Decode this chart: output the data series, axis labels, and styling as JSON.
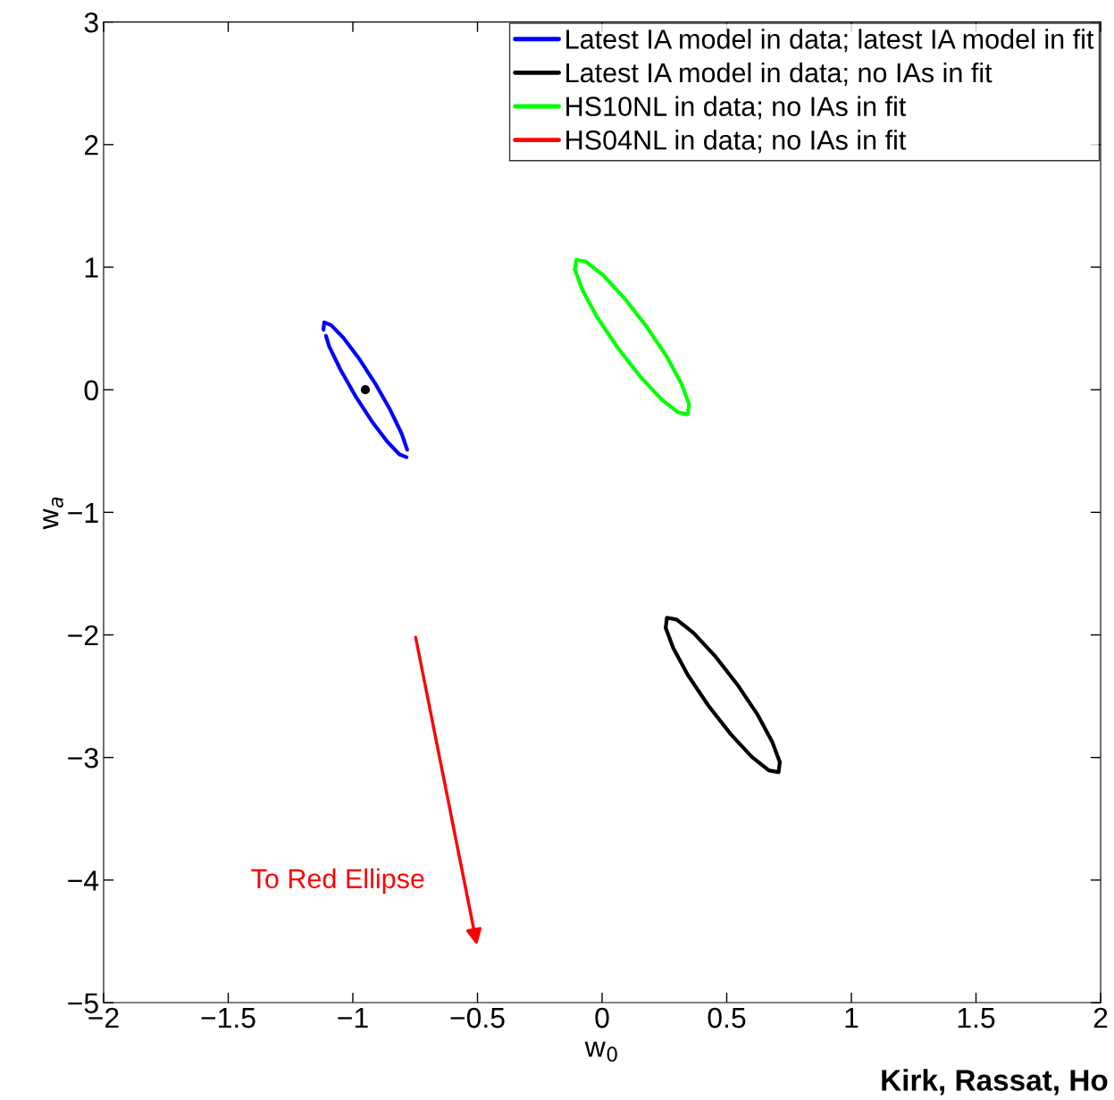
{
  "chart_data": {
    "type": "line",
    "xlabel": "w$_{0}$",
    "ylabel": "w$_{a}$",
    "xlim": [
      -2,
      2
    ],
    "ylim": [
      -5,
      3
    ],
    "xticks": [
      {
        "value": -2,
        "label": "−2"
      },
      {
        "value": -1.5,
        "label": "−1.5"
      },
      {
        "value": -1,
        "label": "−1"
      },
      {
        "value": -0.5,
        "label": "−0.5"
      },
      0,
      0.5,
      1,
      1.5,
      2
    ],
    "yticks": [
      {
        "value": -5,
        "label": "−5"
      },
      {
        "value": -4,
        "label": "−4"
      },
      {
        "value": -3,
        "label": "−3"
      },
      {
        "value": -2,
        "label": "−2"
      },
      {
        "value": -1,
        "label": "−1"
      },
      0,
      1,
      2,
      3
    ],
    "grid": false,
    "legend": "top right",
    "line_style": "solid",
    "series": [
      {
        "name": "Latest IA model in data; latest IA model in fit",
        "color": "#0000ff",
        "x": [
          -1.118,
          -1.115,
          -1.087,
          -1.038,
          -0.976,
          -0.91,
          -0.85,
          -0.805,
          -0.782
        ],
        "values": [
          0.489,
          0.55,
          0.527,
          0.424,
          0.257,
          0.05,
          -0.165,
          -0.354,
          -0.489
        ]
      },
      {
        "color": "#0000ff",
        "x": [
          -1.108,
          -1.095,
          -1.05,
          -0.99,
          -0.924,
          -0.862,
          -0.813,
          -0.785
        ],
        "values": [
          0.44,
          0.354,
          0.165,
          -0.05,
          -0.257,
          -0.424,
          -0.527,
          -0.55
        ]
      },
      {
        "name": "Latest IA model in data; no IAs in fit",
        "color": "#000000",
        "x": [
          0.255,
          0.26,
          0.299,
          0.367,
          0.452,
          0.542,
          0.624,
          0.683,
          0.713
        ],
        "values": [
          -1.941,
          -1.86,
          -1.875,
          -1.984,
          -2.17,
          -2.404,
          -2.652,
          -2.874,
          -3.039
        ]
      },
      {
        "color": "#000000",
        "x": [
          0.255,
          0.285,
          0.344,
          0.426,
          0.516,
          0.601,
          0.669,
          0.708,
          0.713
        ],
        "values": [
          -1.941,
          -2.106,
          -2.328,
          -2.576,
          -2.81,
          -2.996,
          -3.105,
          -3.12,
          -3.039
        ]
      },
      {
        "name": "HS10NL in data; no IAs in fit",
        "color": "#00ff00",
        "x": [
          -0.109,
          -0.104,
          -0.065,
          0.003,
          0.088,
          0.178,
          0.26,
          0.319,
          0.349
        ],
        "values": [
          0.979,
          1.06,
          1.045,
          0.936,
          0.75,
          0.516,
          0.268,
          0.046,
          -0.119
        ]
      },
      {
        "color": "#00ff00",
        "x": [
          -0.109,
          -0.079,
          -0.02,
          0.062,
          0.152,
          0.237,
          0.305,
          0.344,
          0.349
        ],
        "values": [
          0.979,
          0.814,
          0.592,
          0.344,
          0.11,
          -0.076,
          -0.185,
          -0.2,
          -0.119
        ]
      },
      {
        "name": "HS04NL in data; no IAs in fit",
        "color": "#ff0000"
      },
      {
        "type": "scatter",
        "color": "#000000",
        "x": [
          -0.95
        ],
        "values": [
          0
        ],
        "marker": "circle"
      }
    ],
    "annotations": [
      "To Red Ellipse",
      "Kirk, Rassat, Ho"
    ]
  }
}
